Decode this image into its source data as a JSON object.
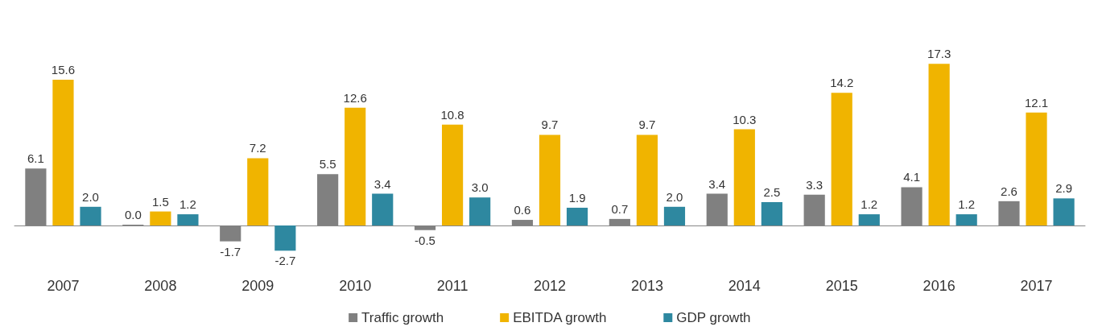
{
  "chart_data": {
    "type": "bar",
    "categories": [
      "2007",
      "2008",
      "2009",
      "2010",
      "2011",
      "2012",
      "2013",
      "2014",
      "2015",
      "2016",
      "2017"
    ],
    "series": [
      {
        "name": "Traffic growth",
        "color": "#808080",
        "values": [
          6.1,
          0.0,
          -1.7,
          5.5,
          -0.5,
          0.6,
          0.7,
          3.4,
          3.3,
          4.1,
          2.6
        ],
        "value_labels": [
          "6.1",
          "0.0",
          "-1.7",
          "5.5",
          "-0.5",
          "0.6",
          "0.7",
          "3.4",
          "3.3",
          "4.1",
          "2.6"
        ]
      },
      {
        "name": "EBITDA growth",
        "color": "#f0b400",
        "values": [
          15.6,
          1.5,
          7.2,
          12.6,
          10.8,
          9.7,
          9.7,
          10.3,
          14.2,
          17.3,
          12.1
        ],
        "value_labels": [
          "15.6",
          "1.5",
          "7.2",
          "12.6",
          "10.8",
          "9.7",
          "9.7",
          "10.3",
          "14.2",
          "17.3",
          "12.1"
        ]
      },
      {
        "name": "GDP growth",
        "color": "#2e88a0",
        "values": [
          2.0,
          1.2,
          -2.7,
          3.4,
          3.0,
          1.9,
          2.0,
          2.5,
          1.2,
          1.2,
          2.9
        ],
        "value_labels": [
          "2.0",
          "1.2",
          "-2.7",
          "3.4",
          "3.0",
          "1.9",
          "2.0",
          "2.5",
          "1.2",
          "1.2",
          "2.9"
        ]
      }
    ],
    "legend": "bottom",
    "grid": false
  }
}
